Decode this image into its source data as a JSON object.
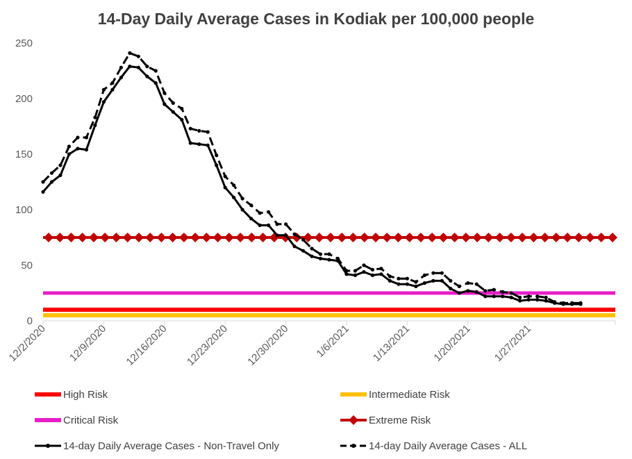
{
  "chart_data": {
    "type": "line",
    "title": "14-Day Daily Average Cases in Kodiak per 100,000 people",
    "xlabel": "",
    "ylabel": "",
    "ylim": [
      0,
      250
    ],
    "y_ticks": [
      0,
      50,
      100,
      150,
      200,
      250
    ],
    "x_range": [
      "12/2/2020",
      "2/6/2021"
    ],
    "x_tick_labels": [
      "12/2/2020",
      "12/9/2020",
      "12/16/2020",
      "12/23/2020",
      "12/30/2020",
      "1/6/2021",
      "1/13/2021",
      "1/20/2021",
      "1/27/2021"
    ],
    "grid": false,
    "legend_position": "bottom",
    "thresholds": [
      {
        "name": "High Risk",
        "value": 10,
        "color": "#ff0000",
        "style": "thick-line"
      },
      {
        "name": "Intermediate Risk",
        "value": 5,
        "color": "#ffc000",
        "style": "thick-line"
      },
      {
        "name": "Critical Risk",
        "value": 25,
        "color": "#e81ec8",
        "style": "line"
      },
      {
        "name": "Extreme Risk",
        "value": 75,
        "color": "#c00000",
        "style": "diamond-markers"
      }
    ],
    "series": [
      {
        "name": "14-day Daily Average Cases - Non-Travel Only",
        "color": "#000000",
        "style": "solid",
        "x": [
          "12/2/2020",
          "12/3/2020",
          "12/4/2020",
          "12/5/2020",
          "12/6/2020",
          "12/7/2020",
          "12/8/2020",
          "12/9/2020",
          "12/10/2020",
          "12/11/2020",
          "12/12/2020",
          "12/13/2020",
          "12/14/2020",
          "12/15/2020",
          "12/16/2020",
          "12/17/2020",
          "12/18/2020",
          "12/19/2020",
          "12/20/2020",
          "12/21/2020",
          "12/22/2020",
          "12/23/2020",
          "12/24/2020",
          "12/25/2020",
          "12/26/2020",
          "12/27/2020",
          "12/28/2020",
          "12/29/2020",
          "12/30/2020",
          "12/31/2020",
          "1/1/2021",
          "1/2/2021",
          "1/3/2021",
          "1/4/2021",
          "1/5/2021",
          "1/6/2021",
          "1/7/2021",
          "1/8/2021",
          "1/9/2021",
          "1/10/2021",
          "1/11/2021",
          "1/12/2021",
          "1/13/2021",
          "1/14/2021",
          "1/15/2021",
          "1/16/2021",
          "1/17/2021",
          "1/18/2021",
          "1/19/2021",
          "1/20/2021",
          "1/21/2021",
          "1/22/2021",
          "1/23/2021",
          "1/24/2021",
          "1/25/2021",
          "1/26/2021",
          "1/27/2021",
          "1/28/2021",
          "1/29/2021",
          "1/30/2021",
          "1/31/2021",
          "2/1/2021",
          "2/2/2021"
        ],
        "values": [
          116,
          125,
          131,
          150,
          155,
          154,
          176,
          197,
          208,
          219,
          229,
          228,
          220,
          214,
          195,
          188,
          181,
          160,
          159,
          158,
          140,
          120,
          111,
          100,
          92,
          86,
          86,
          77,
          77,
          67,
          63,
          58,
          56,
          55,
          54,
          42,
          41,
          44,
          41,
          42,
          36,
          33,
          33,
          31,
          34,
          36,
          36,
          29,
          25,
          27,
          26,
          22,
          22,
          22,
          21,
          18,
          19,
          19,
          18,
          16,
          15,
          15,
          15
        ]
      },
      {
        "name": "14-day Daily Average Cases - ALL",
        "color": "#000000",
        "style": "dashed",
        "x": [
          "12/2/2020",
          "12/3/2020",
          "12/4/2020",
          "12/5/2020",
          "12/6/2020",
          "12/7/2020",
          "12/8/2020",
          "12/9/2020",
          "12/10/2020",
          "12/11/2020",
          "12/12/2020",
          "12/13/2020",
          "12/14/2020",
          "12/15/2020",
          "12/16/2020",
          "12/17/2020",
          "12/18/2020",
          "12/19/2020",
          "12/20/2020",
          "12/21/2020",
          "12/22/2020",
          "12/23/2020",
          "12/24/2020",
          "12/25/2020",
          "12/26/2020",
          "12/27/2020",
          "12/28/2020",
          "12/29/2020",
          "12/30/2020",
          "12/31/2020",
          "1/1/2021",
          "1/2/2021",
          "1/3/2021",
          "1/4/2021",
          "1/5/2021",
          "1/6/2021",
          "1/7/2021",
          "1/8/2021",
          "1/9/2021",
          "1/10/2021",
          "1/11/2021",
          "1/12/2021",
          "1/13/2021",
          "1/14/2021",
          "1/15/2021",
          "1/16/2021",
          "1/17/2021",
          "1/18/2021",
          "1/19/2021",
          "1/20/2021",
          "1/21/2021",
          "1/22/2021",
          "1/23/2021",
          "1/24/2021",
          "1/25/2021",
          "1/26/2021",
          "1/27/2021",
          "1/28/2021",
          "1/29/2021",
          "1/30/2021",
          "1/31/2021",
          "2/1/2021",
          "2/2/2021"
        ],
        "values": [
          125,
          133,
          140,
          157,
          165,
          165,
          183,
          208,
          214,
          228,
          241,
          238,
          229,
          225,
          205,
          196,
          191,
          173,
          171,
          170,
          149,
          130,
          122,
          110,
          104,
          97,
          98,
          87,
          87,
          78,
          73,
          65,
          60,
          60,
          56,
          45,
          45,
          50,
          46,
          47,
          40,
          38,
          38,
          35,
          41,
          43,
          43,
          36,
          31,
          34,
          33,
          27,
          28,
          26,
          25,
          21,
          22,
          22,
          21,
          17,
          16,
          16,
          16
        ]
      }
    ]
  }
}
